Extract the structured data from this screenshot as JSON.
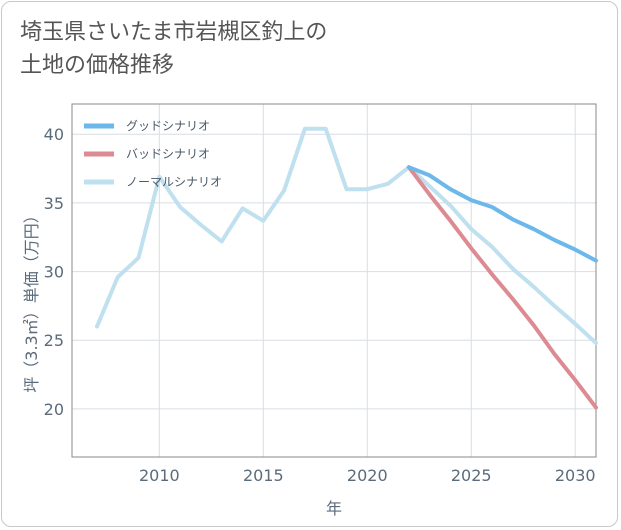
{
  "title_lines": [
    "埼玉県さいたま市岩槻区釣上の",
    "土地の価格推移"
  ],
  "chart_data": {
    "type": "line",
    "title": "埼玉県さいたま市岩槻区釣上の土地の価格推移",
    "xlabel": "年",
    "ylabel": "坪（3.3㎡）単価（万円）",
    "xlim": [
      2005.8,
      2031
    ],
    "ylim": [
      16.5,
      42.2
    ],
    "x_ticks": [
      2010,
      2015,
      2020,
      2025,
      2030
    ],
    "y_ticks": [
      20,
      25,
      30,
      35,
      40
    ],
    "grid": true,
    "legend_position": "top-left",
    "series": [
      {
        "name": "グッドシナリオ",
        "color": "#6cb8ea",
        "x": [
          2022,
          2023,
          2024,
          2025,
          2026,
          2027,
          2028,
          2029,
          2030,
          2031
        ],
        "values": [
          37.6,
          37.0,
          36.0,
          35.2,
          34.7,
          33.8,
          33.1,
          32.3,
          31.6,
          30.8
        ]
      },
      {
        "name": "バッドシナリオ",
        "color": "#dd8b93",
        "x": [
          2022,
          2023,
          2024,
          2025,
          2026,
          2027,
          2028,
          2029,
          2030,
          2031
        ],
        "values": [
          37.6,
          35.6,
          33.7,
          31.7,
          29.8,
          28.0,
          26.1,
          24.0,
          22.1,
          20.1
        ]
      },
      {
        "name": "ノーマルシナリオ",
        "color": "#bfe0ee",
        "x": [
          2007,
          2008,
          2009,
          2010,
          2011,
          2012,
          2013,
          2014,
          2015,
          2016,
          2017,
          2018,
          2019,
          2020,
          2021,
          2022,
          2023,
          2024,
          2025,
          2026,
          2027,
          2028,
          2029,
          2030,
          2031
        ],
        "values": [
          26.0,
          29.6,
          31.0,
          36.9,
          34.7,
          33.4,
          32.2,
          34.6,
          33.7,
          35.9,
          40.4,
          40.4,
          36.0,
          36.0,
          36.4,
          37.6,
          36.2,
          34.8,
          33.1,
          31.8,
          30.2,
          28.9,
          27.5,
          26.2,
          24.8
        ]
      }
    ]
  }
}
